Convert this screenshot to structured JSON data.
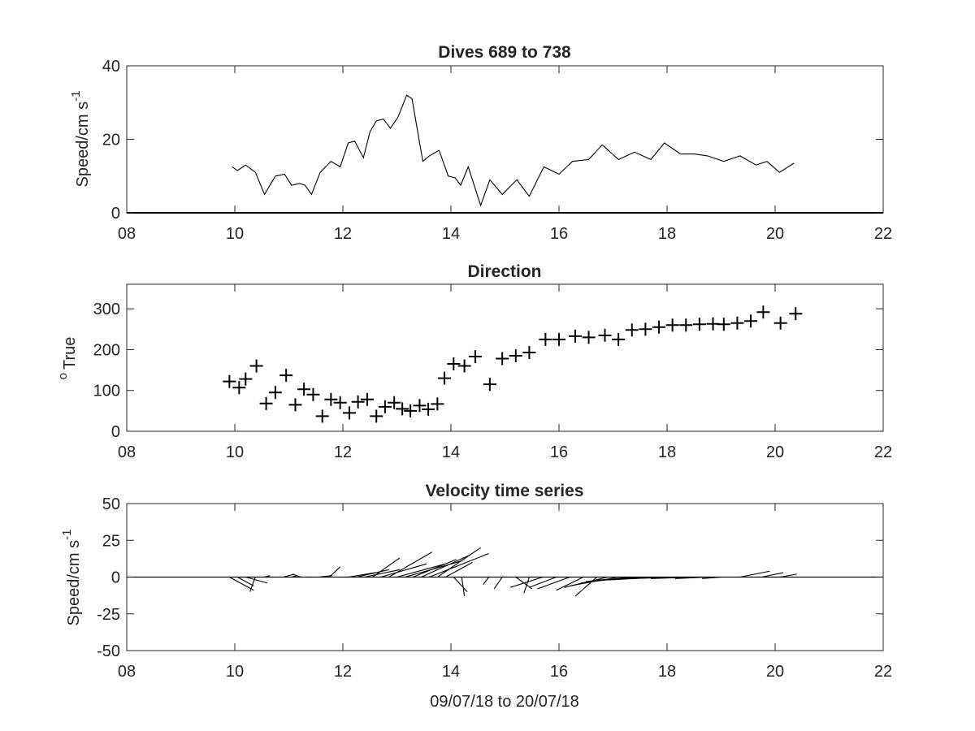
{
  "chart_data": [
    {
      "type": "line",
      "title": "Dives 689 to 738",
      "xlabel": "",
      "ylabel": "Speed/cm s",
      "ylabel_superscript": "-1",
      "xlim": [
        8,
        22
      ],
      "ylim": [
        0,
        40
      ],
      "xticks": [
        "08",
        "10",
        "12",
        "14",
        "16",
        "18",
        "20",
        "22"
      ],
      "yticks": [
        "0",
        "20",
        "40"
      ],
      "grid": false,
      "series": [
        {
          "color": "#000000",
          "x": [
            9.95,
            10.05,
            10.2,
            10.38,
            10.55,
            10.75,
            10.92,
            11.05,
            11.2,
            11.3,
            11.42,
            11.58,
            11.78,
            11.95,
            12.1,
            12.22,
            12.38,
            12.5,
            12.62,
            12.75,
            12.88,
            13.02,
            13.18,
            13.28,
            13.48,
            13.6,
            13.78,
            13.95,
            14.08,
            14.18,
            14.32,
            14.55,
            14.72,
            14.95,
            15.22,
            15.45,
            15.72,
            16.0,
            16.25,
            16.55,
            16.8,
            17.1,
            17.4,
            17.7,
            17.95,
            18.25,
            18.5,
            18.75,
            19.05,
            19.35,
            19.65,
            19.85,
            20.08,
            20.35
          ],
          "values": [
            12.5,
            11.5,
            13,
            11,
            5,
            10,
            10.5,
            7.5,
            8,
            7.5,
            5,
            11,
            14,
            12.5,
            19,
            19.5,
            15,
            22,
            25,
            25.5,
            23,
            26,
            32,
            31,
            14,
            15.5,
            17,
            10,
            9.5,
            7.5,
            12.5,
            2,
            9,
            5,
            9,
            4.5,
            12.5,
            10.5,
            14,
            14.5,
            18.5,
            14.5,
            16.5,
            14.5,
            19,
            16,
            16,
            15.5,
            14,
            15.5,
            13,
            14,
            11,
            13.5
          ]
        }
      ]
    },
    {
      "type": "scatter",
      "title": "Direction",
      "xlabel": "",
      "ylabel": "True",
      "ylabel_superscript": "o",
      "xlim": [
        8,
        22
      ],
      "ylim": [
        0,
        360
      ],
      "xticks": [
        "08",
        "10",
        "12",
        "14",
        "16",
        "18",
        "20",
        "22"
      ],
      "yticks": [
        "0",
        "100",
        "200",
        "300"
      ],
      "marker": "+",
      "grid": false,
      "series": [
        {
          "color": "#000000",
          "x": [
            9.9,
            10.08,
            10.2,
            10.4,
            10.58,
            10.75,
            10.95,
            11.12,
            11.28,
            11.45,
            11.62,
            11.78,
            11.95,
            12.12,
            12.28,
            12.45,
            12.62,
            12.78,
            12.95,
            13.1,
            13.25,
            13.42,
            13.58,
            13.75,
            13.88,
            14.05,
            14.25,
            14.45,
            14.72,
            14.95,
            15.2,
            15.45,
            15.75,
            16.0,
            16.3,
            16.55,
            16.85,
            17.1,
            17.35,
            17.6,
            17.85,
            18.1,
            18.35,
            18.6,
            18.85,
            19.05,
            19.3,
            19.55,
            19.78,
            20.1,
            20.38
          ],
          "values": [
            122,
            107,
            128,
            160,
            68,
            95,
            137,
            65,
            103,
            90,
            37,
            78,
            70,
            45,
            72,
            78,
            37,
            60,
            70,
            55,
            50,
            63,
            54,
            67,
            130,
            165,
            160,
            183,
            115,
            178,
            185,
            193,
            225,
            225,
            233,
            230,
            235,
            225,
            248,
            250,
            255,
            260,
            260,
            262,
            263,
            262,
            265,
            270,
            292,
            265,
            288
          ]
        }
      ]
    },
    {
      "type": "line",
      "subtype": "stick-plot",
      "title": "Velocity time series",
      "xlabel": "09/07/18 to 20/07/18",
      "ylabel": "Speed/cm s",
      "ylabel_superscript": "-1",
      "xlim": [
        8,
        22
      ],
      "ylim": [
        -50,
        50
      ],
      "xticks": [
        "08",
        "10",
        "12",
        "14",
        "16",
        "18",
        "20",
        "22"
      ],
      "yticks": [
        "-50",
        "-25",
        "0",
        "25",
        "50"
      ],
      "grid": false,
      "series": [
        {
          "color": "#000000",
          "note_units": "stick tails at (x, 0), heads at (x + dx days, dy cm/s)",
          "x": [
            9.9,
            10.05,
            10.2,
            10.38,
            10.55,
            10.72,
            10.9,
            11.05,
            11.22,
            11.38,
            11.55,
            11.75,
            11.95,
            12.1,
            12.25,
            12.4,
            12.55,
            12.7,
            12.85,
            13.0,
            13.15,
            13.3,
            13.45,
            13.6,
            13.75,
            13.9,
            14.05,
            14.2,
            14.7,
            14.95,
            15.2,
            15.45,
            15.7,
            15.95,
            16.2,
            16.45,
            16.7,
            16.9,
            17.1,
            17.3,
            17.5,
            17.7,
            17.9,
            18.1,
            18.3,
            18.5,
            18.75,
            19.0,
            19.35,
            19.75,
            20.1
          ],
          "dx": [
            0.45,
            0.3,
            0.4,
            -0.1,
            0.1,
            -0.15,
            0.2,
            0.1,
            -0.15,
            -0.05,
            0.25,
            0.2,
            0.3,
            0.5,
            0.6,
            0.65,
            0.5,
            0.85,
            0.8,
            0.9,
            1.05,
            0.8,
            0.9,
            1.1,
            0.8,
            0.5,
            0.25,
            0.05,
            -0.1,
            -0.15,
            0.3,
            -0.1,
            -0.6,
            -0.5,
            -0.6,
            -0.5,
            -0.4,
            -0.8,
            -0.9,
            -0.9,
            -1.0,
            -1.0,
            -1.0,
            -1.0,
            -1.0,
            -0.8,
            -0.6,
            -0.35,
            0.55,
            0.4,
            0.3
          ],
          "dy": [
            -9,
            -6,
            -4,
            -10,
            1,
            0,
            2,
            1,
            2,
            0,
            1,
            7,
            0,
            3,
            5,
            5,
            13,
            9,
            17,
            9,
            11,
            12,
            15,
            16,
            20,
            10,
            -10,
            -13,
            -5,
            -8,
            -8,
            -11,
            -7,
            -7,
            -8,
            -9,
            -13,
            -7,
            -6,
            -4,
            -3,
            -2,
            -2,
            -1,
            -1,
            -1,
            -1,
            -1,
            4,
            3,
            2
          ]
        }
      ]
    }
  ]
}
